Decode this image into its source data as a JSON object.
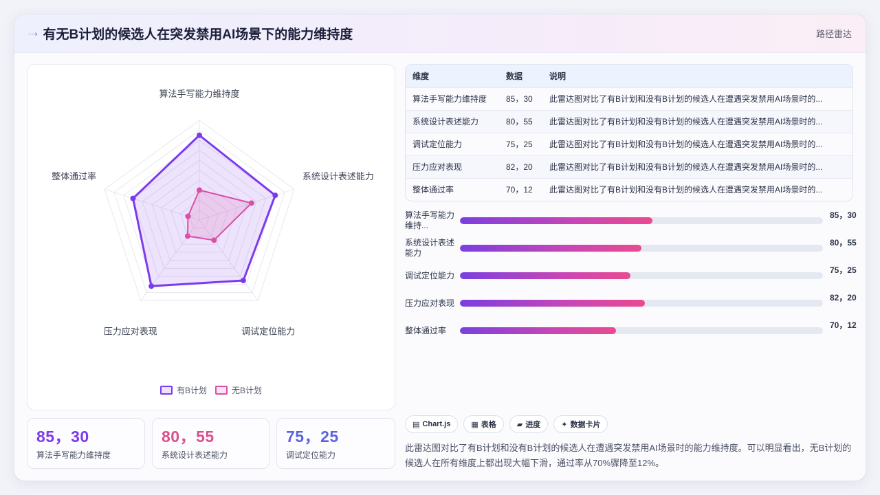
{
  "header": {
    "title": "有无B计划的候选人在突发禁用AI场景下的能力维持度",
    "tag": "路径雷达"
  },
  "legend": {
    "with_plan": "有B计划",
    "without_plan": "无B计划"
  },
  "colors": {
    "with_plan": "#7c3aed",
    "without_plan": "#db4fa6",
    "stat_blue": "#5b64e0"
  },
  "chart_data": {
    "type": "radar",
    "categories": [
      "算法手写能力维持度",
      "系统设计表述能力",
      "调试定位能力",
      "压力应对表现",
      "整体通过率"
    ],
    "series": [
      {
        "name": "有B计划",
        "values": [
          85,
          80,
          75,
          82,
          70
        ]
      },
      {
        "name": "无B计划",
        "values": [
          30,
          55,
          25,
          20,
          12
        ]
      }
    ],
    "rlim": [
      0,
      100
    ],
    "grid": true,
    "legend": "bottom"
  },
  "stats": [
    {
      "value": "85，30",
      "label": "算法手写能力维持度"
    },
    {
      "value": "80，55",
      "label": "系统设计表述能力"
    },
    {
      "value": "75，25",
      "label": "调试定位能力"
    }
  ],
  "table": {
    "headers": [
      "维度",
      "数据",
      "说明"
    ],
    "rows": [
      {
        "dim": "算法手写能力维持度",
        "val": "85，30",
        "desc": "此雷达图对比了有B计划和没有B计划的候选人在遭遇突发禁用AI场景时的..."
      },
      {
        "dim": "系统设计表述能力",
        "val": "80，55",
        "desc": "此雷达图对比了有B计划和没有B计划的候选人在遭遇突发禁用AI场景时的..."
      },
      {
        "dim": "调试定位能力",
        "val": "75，25",
        "desc": "此雷达图对比了有B计划和没有B计划的候选人在遭遇突发禁用AI场景时的..."
      },
      {
        "dim": "压力应对表现",
        "val": "82，20",
        "desc": "此雷达图对比了有B计划和没有B计划的候选人在遭遇突发禁用AI场景时的..."
      },
      {
        "dim": "整体通过率",
        "val": "70，12",
        "desc": "此雷达图对比了有B计划和没有B计划的候选人在遭遇突发禁用AI场景时的..."
      }
    ]
  },
  "bars": [
    {
      "label": "算法手写能力维持...",
      "value_text": "85，30",
      "level": 0.53
    },
    {
      "label": "系统设计表述能力",
      "value_text": "80，55",
      "level": 0.5
    },
    {
      "label": "调试定位能力",
      "value_text": "75，25",
      "level": 0.47
    },
    {
      "label": "压力应对表现",
      "value_text": "82，20",
      "level": 0.51
    },
    {
      "label": "整体通过率",
      "value_text": "70，12",
      "level": 0.43
    }
  ],
  "chips": [
    {
      "icon": "▤",
      "label": "Chart.js"
    },
    {
      "icon": "▦",
      "label": "表格"
    },
    {
      "icon": "▰",
      "label": "进度"
    },
    {
      "icon": "✦",
      "label": "数据卡片"
    }
  ],
  "summary": "此雷达图对比了有B计划和没有B计划的候选人在遭遇突发禁用AI场景时的能力维持度。可以明显看出，无B计划的候选人在所有维度上都出现大幅下滑，通过率从70%骤降至12%。"
}
